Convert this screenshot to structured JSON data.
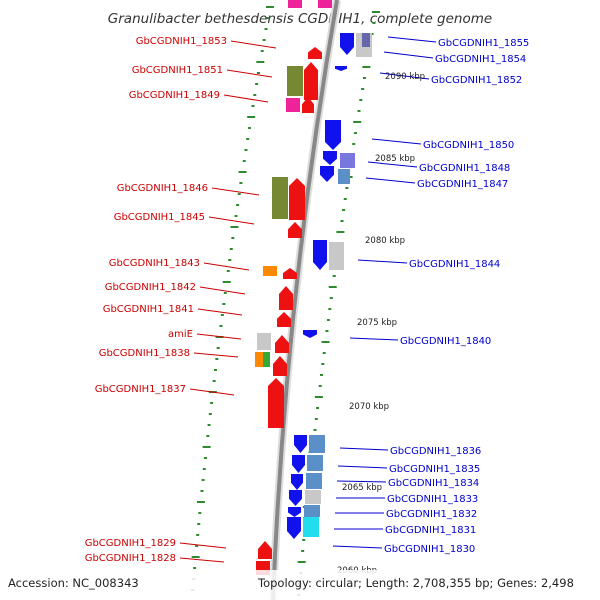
{
  "title": "Granulibacter bethesdensis CGDNIH1, complete genome",
  "footer": {
    "accession": "Accession: NC_008343",
    "summary": "Topology: circular; Length: 2,708,355 bp; Genes: 2,498"
  },
  "colors": {
    "forward_label": "#cc0000",
    "reverse_label": "#0000cc",
    "backbone": "#888888",
    "tick": "#2e8b2e"
  },
  "scale_labels": [
    "2090 kbp",
    "2085 kbp",
    "2080 kbp",
    "2075 kbp",
    "2070 kbp",
    "2065 kbp",
    "2060 kbp"
  ],
  "left_genes": [
    "GbCGDNIH1_1853",
    "GbCGDNIH1_1851",
    "GbCGDNIH1_1849",
    "GbCGDNIH1_1846",
    "GbCGDNIH1_1845",
    "GbCGDNIH1_1843",
    "GbCGDNIH1_1842",
    "GbCGDNIH1_1841",
    "amiE",
    "GbCGDNIH1_1838",
    "GbCGDNIH1_1837",
    "GbCGDNIH1_1829",
    "GbCGDNIH1_1828"
  ],
  "right_genes": [
    "GbCGDNIH1_1855",
    "GbCGDNIH1_1854",
    "GbCGDNIH1_1852",
    "GbCGDNIH1_1850",
    "GbCGDNIH1_1848",
    "GbCGDNIH1_1847",
    "GbCGDNIH1_1844",
    "GbCGDNIH1_1840",
    "GbCGDNIH1_1836",
    "GbCGDNIH1_1835",
    "GbCGDNIH1_1834",
    "GbCGDNIH1_1833",
    "GbCGDNIH1_1832",
    "GbCGDNIH1_1831",
    "GbCGDNIH1_1830"
  ]
}
